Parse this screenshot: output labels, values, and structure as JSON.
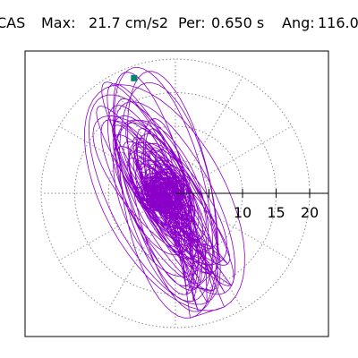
{
  "header": {
    "station": "CAS",
    "max_label": "Max:",
    "max_value": "21.7 cm/s2",
    "per_label": "Per:",
    "per_value": "0.650 s",
    "ang_label": "Ang:",
    "ang_value": "116.0"
  },
  "plot": {
    "ring_tick_labels": [
      "10",
      "15",
      "20"
    ],
    "ring_values": [
      5,
      10,
      15,
      20
    ],
    "spoke_angle_step_deg": 30,
    "max_value": 21.7,
    "max_angle_deg": 116.0,
    "trace_color": "#8a00c8",
    "marker_color": "#00866e",
    "grid_color": "#8c8c8c"
  }
}
